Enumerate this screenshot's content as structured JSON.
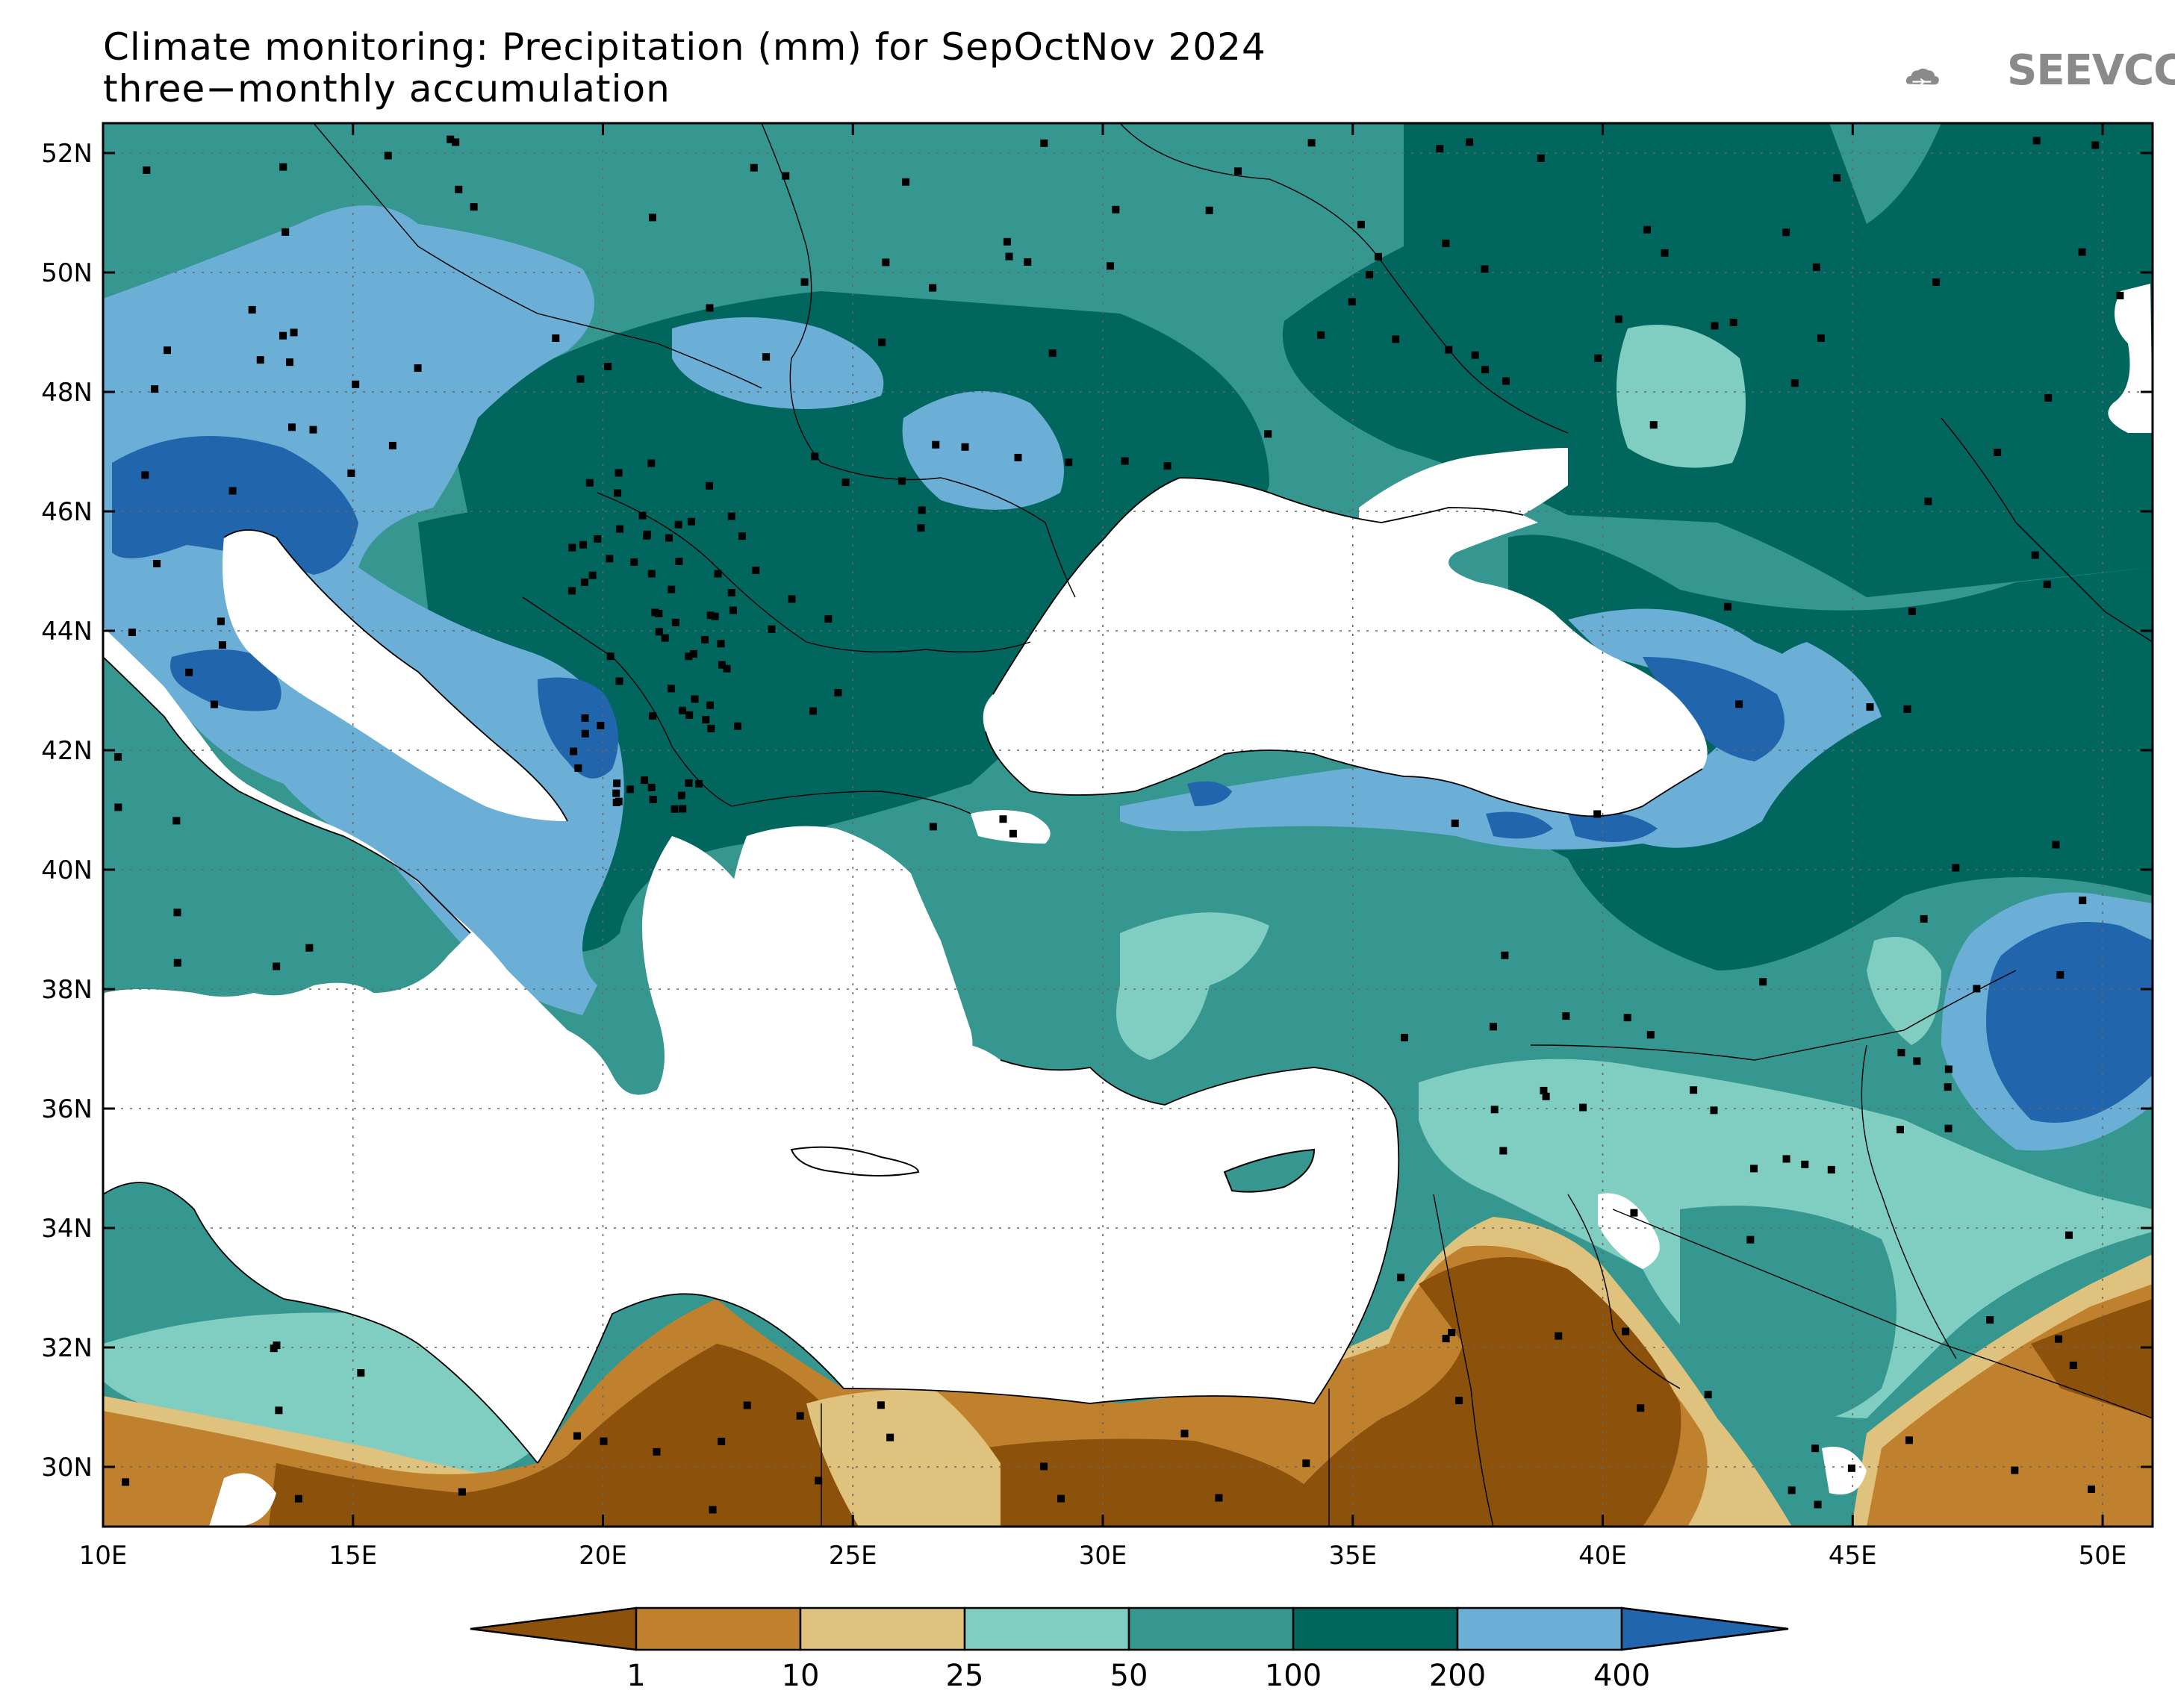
{
  "title_line1": "Climate monitoring: Precipitation (mm) for SepOctNov 2024",
  "title_line2": "three−monthly accumulation",
  "logo_text": "SEEVCCC",
  "map": {
    "lat_labels": [
      "52N",
      "50N",
      "48N",
      "46N",
      "44N",
      "42N",
      "40N",
      "38N",
      "36N",
      "34N",
      "32N",
      "30N"
    ],
    "lon_labels": [
      "10E",
      "15E",
      "20E",
      "25E",
      "30E",
      "35E",
      "40E",
      "45E",
      "50E"
    ],
    "lat_values": [
      52,
      50,
      48,
      46,
      44,
      42,
      40,
      38,
      36,
      34,
      32,
      30
    ],
    "lon_values": [
      10,
      15,
      20,
      25,
      30,
      35,
      40,
      45,
      50
    ]
  },
  "legend": {
    "thresholds": [
      "1",
      "10",
      "25",
      "50",
      "100",
      "200",
      "400"
    ],
    "colors": [
      "#8c510a",
      "#bf812d",
      "#dfc27d",
      "#80cdc1",
      "#35978f",
      "#01665e",
      "#6baed6",
      "#2166ac"
    ],
    "land_empty_color": "#ffffff"
  }
}
